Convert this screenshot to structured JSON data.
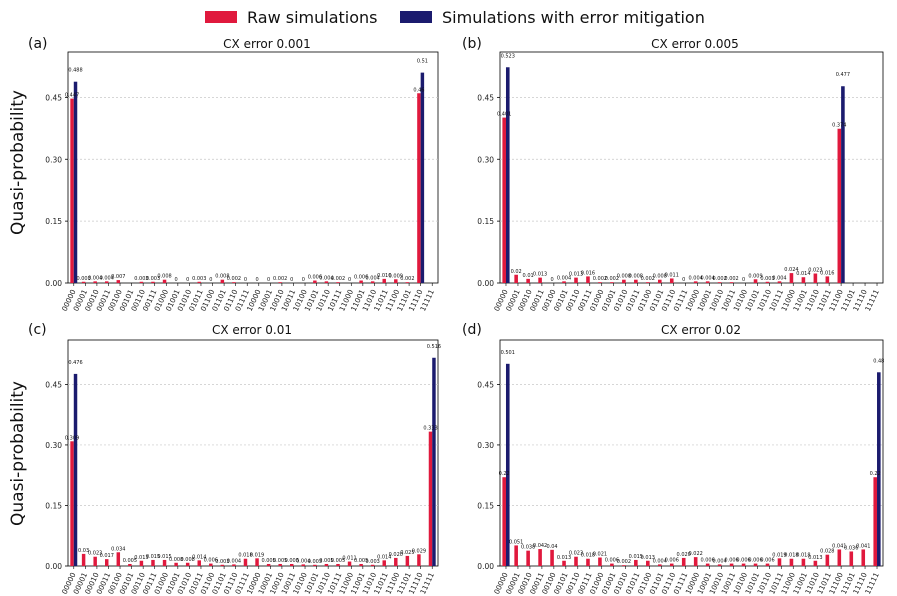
{
  "legend": {
    "raw": {
      "label": "Raw simulations",
      "color": "#e0193d"
    },
    "mit": {
      "label": "Simulations with error mitigation",
      "color": "#1b1b6e"
    }
  },
  "ylabel": "Quasi-probability",
  "chart_data": [
    {
      "type": "bar",
      "panel": "(a)",
      "title": "CX error 0.001",
      "ylabel": "Quasi-probability",
      "categories": [
        "00000",
        "00001",
        "00010",
        "00011",
        "00100",
        "00101",
        "00110",
        "00111",
        "01000",
        "01001",
        "01010",
        "01011",
        "01100",
        "01101",
        "01110",
        "01111",
        "10000",
        "10001",
        "10010",
        "10011",
        "10100",
        "10101",
        "10110",
        "10111",
        "11000",
        "11001",
        "11010",
        "11011",
        "11100",
        "11101",
        "11110",
        "11111"
      ],
      "yticks": [
        "0.00",
        "0.15",
        "0.30",
        "0.45"
      ],
      "ylim": [
        0,
        0.56
      ],
      "grid": true,
      "series": [
        {
          "name": "Raw simulations",
          "values": [
            0.447,
            0.003,
            0.004,
            0.004,
            0.007,
            0.0,
            0.003,
            0.003,
            0.008,
            0.0,
            0.0,
            0.003,
            0.0,
            0.008,
            0.002,
            0.0,
            0.0,
            0.0,
            0.002,
            0.0,
            0.0,
            0.006,
            0.004,
            0.002,
            0.0,
            0.006,
            0.004,
            0.01,
            0.009,
            0.002,
            0.46,
            0.0
          ],
          "labels": [
            "0.447",
            "0.003",
            "0.004",
            "0.004",
            "0.007",
            "",
            "0.003",
            "0.003",
            "0.008",
            "0",
            "0",
            "0.003",
            "0",
            "0.008",
            "0.002",
            "0",
            "0",
            "0",
            "0.002",
            "0",
            "0",
            "0.006",
            "0.004",
            "0.002",
            "0",
            "0.006",
            "0.004",
            "0.010",
            "0.009",
            "0.002",
            "0.46",
            ""
          ]
        },
        {
          "name": "Simulations with error mitigation",
          "values": [
            0.488,
            0,
            0,
            0,
            0,
            0,
            0,
            0,
            0,
            0,
            0,
            0,
            0,
            0,
            0,
            0,
            0,
            0,
            0,
            0,
            0,
            0,
            0,
            0,
            0,
            0,
            0,
            0,
            0,
            0,
            0.51,
            0
          ],
          "labels": [
            "0.488",
            "",
            "",
            "",
            "",
            "",
            "",
            "",
            "",
            "",
            "",
            "",
            "",
            "",
            "",
            "",
            "",
            "",
            "",
            "",
            "",
            "",
            "",
            "",
            "",
            "",
            "",
            "",
            "",
            "",
            "0.51",
            ""
          ]
        }
      ]
    },
    {
      "type": "bar",
      "panel": "(b)",
      "title": "CX error 0.005",
      "categories": [
        "00000",
        "00001",
        "00010",
        "00011",
        "00100",
        "00101",
        "00110",
        "00111",
        "01000",
        "01001",
        "01010",
        "01011",
        "01100",
        "01101",
        "01110",
        "01111",
        "10000",
        "10001",
        "10010",
        "10011",
        "10100",
        "10101",
        "10110",
        "10111",
        "11000",
        "11001",
        "11010",
        "11011",
        "11100",
        "11101",
        "11110",
        "11111"
      ],
      "yticks": [
        "0.00",
        "0.15",
        "0.30",
        "0.45"
      ],
      "ylim": [
        0,
        0.56
      ],
      "grid": true,
      "series": [
        {
          "name": "Raw simulations",
          "values": [
            0.401,
            0.02,
            0.01,
            0.013,
            0.0,
            0.004,
            0.013,
            0.016,
            0.002,
            0.002,
            0.008,
            0.008,
            0.002,
            0.008,
            0.011,
            0.0,
            0.004,
            0.004,
            0.002,
            0.002,
            0.0,
            0.009,
            0.003,
            0.004,
            0.024,
            0.014,
            0.023,
            0.016,
            0.374,
            0.0,
            0.0,
            0.0
          ],
          "labels": [
            "0.401",
            "0.02",
            "0.01",
            "0.013",
            "0",
            "0.004",
            "0.013",
            "0.016",
            "0.002",
            "0.002",
            "0.008",
            "0.008",
            "0.002",
            "0.008",
            "0.011",
            "0",
            "0.004",
            "0.004",
            "0.002",
            "0.002",
            "0",
            "0.009",
            "0.003",
            "0.004",
            "0.024",
            "0.014",
            "0.023",
            "0.016",
            "0.374",
            "",
            "",
            ""
          ]
        },
        {
          "name": "Simulations with error mitigation",
          "values": [
            0.523,
            0,
            0,
            0,
            0,
            0,
            0,
            0,
            0,
            0,
            0,
            0,
            0,
            0,
            0,
            0,
            0,
            0,
            0,
            0,
            0,
            0,
            0,
            0,
            0,
            0,
            0,
            0,
            0.477,
            0,
            0,
            0
          ],
          "labels": [
            "0.523",
            "",
            "",
            "",
            "",
            "",
            "",
            "",
            "",
            "",
            "",
            "",
            "",
            "",
            "",
            "",
            "",
            "",
            "",
            "",
            "",
            "",
            "",
            "",
            "",
            "",
            "",
            "",
            "0.477",
            "",
            "",
            ""
          ]
        }
      ]
    },
    {
      "type": "bar",
      "panel": "(c)",
      "title": "CX error 0.01",
      "ylabel": "Quasi-probability",
      "categories": [
        "00000",
        "00001",
        "00010",
        "00011",
        "00100",
        "00101",
        "00110",
        "00111",
        "01000",
        "01001",
        "01010",
        "01011",
        "01100",
        "01101",
        "01110",
        "01111",
        "10000",
        "10001",
        "10010",
        "10011",
        "10100",
        "10101",
        "10110",
        "10111",
        "11000",
        "11001",
        "11010",
        "11011",
        "11100",
        "11101",
        "11110",
        "11111"
      ],
      "yticks": [
        "0.00",
        "0.15",
        "0.30",
        "0.45"
      ],
      "ylim": [
        0,
        0.56
      ],
      "grid": true,
      "series": [
        {
          "name": "Raw simulations",
          "values": [
            0.309,
            0.03,
            0.023,
            0.017,
            0.034,
            0.005,
            0.013,
            0.015,
            0.015,
            0.008,
            0.008,
            0.014,
            0.006,
            0.003,
            0.004,
            0.018,
            0.019,
            0.005,
            0.005,
            0.005,
            0.004,
            0.003,
            0.005,
            0.005,
            0.011,
            0.005,
            0.003,
            0.014,
            0.02,
            0.025,
            0.029,
            0.333
          ],
          "labels": [
            "0.309",
            "0.03",
            "0.023",
            "0.017",
            "0.034",
            "0.005",
            "0.013",
            "0.015",
            "0.015",
            "0.008",
            "0.008",
            "0.014",
            "0.006",
            "0.003",
            "0.004",
            "0.018",
            "0.019",
            "0.005",
            "0.005",
            "0.005",
            "0.004",
            "0.003",
            "0.005",
            "0.005",
            "0.011",
            "0.005",
            "0.003",
            "0.014",
            "0.020",
            "0.025",
            "0.029",
            "0.333"
          ]
        },
        {
          "name": "Simulations with error mitigation",
          "values": [
            0.476,
            0,
            0,
            0,
            0,
            0,
            0,
            0,
            0,
            0,
            0,
            0,
            0,
            0,
            0,
            0,
            0,
            0,
            0,
            0,
            0,
            0,
            0,
            0,
            0,
            0,
            0,
            0,
            0,
            0,
            0,
            0.516
          ],
          "labels": [
            "0.476",
            "",
            "",
            "",
            "",
            "",
            "",
            "",
            "",
            "",
            "",
            "",
            "",
            "",
            "",
            "",
            "",
            "",
            "",
            "",
            "",
            "",
            "",
            "",
            "",
            "",
            "",
            "",
            "",
            "",
            "",
            "0.516"
          ]
        }
      ]
    },
    {
      "type": "bar",
      "panel": "(d)",
      "title": "CX error 0.02",
      "categories": [
        "00000",
        "00001",
        "00010",
        "00011",
        "00100",
        "00101",
        "00110",
        "00111",
        "01000",
        "01001",
        "01010",
        "01011",
        "01100",
        "01101",
        "01110",
        "01111",
        "10000",
        "10001",
        "10010",
        "10011",
        "10100",
        "10101",
        "10110",
        "10111",
        "11000",
        "11001",
        "11010",
        "11011",
        "11100",
        "11101",
        "11110",
        "11111"
      ],
      "yticks": [
        "0.00",
        "0.15",
        "0.30",
        "0.45"
      ],
      "ylim": [
        0,
        0.56
      ],
      "grid": true,
      "series": [
        {
          "name": "Raw simulations",
          "values": [
            0.22,
            0.051,
            0.038,
            0.042,
            0.04,
            0.013,
            0.023,
            0.018,
            0.021,
            0.006,
            0.002,
            0.015,
            0.013,
            0.004,
            0.006,
            0.02,
            0.022,
            0.006,
            0.004,
            0.006,
            0.006,
            0.006,
            0.006,
            0.019,
            0.018,
            0.018,
            0.013,
            0.028,
            0.041,
            0.036,
            0.041,
            0.22
          ],
          "labels": [
            "0.22",
            "0.051",
            "0.038",
            "0.042",
            "0.04",
            "0.013",
            "0.023",
            "0.018",
            "0.021",
            "0.006",
            "0.002",
            "0.015",
            "0.013",
            "0.004",
            "0.006",
            "0.020",
            "0.022",
            "0.006",
            "0.004",
            "0.006",
            "0.006",
            "0.006",
            "0.006",
            "0.019",
            "0.018",
            "0.018",
            "0.013",
            "0.028",
            "0.041",
            "0.036",
            "0.041",
            "0.22"
          ]
        },
        {
          "name": "Simulations with error mitigation",
          "values": [
            0.501,
            0,
            0,
            0,
            0,
            0,
            0,
            0,
            0,
            0,
            0,
            0,
            0,
            0,
            0,
            0,
            0,
            0,
            0,
            0,
            0,
            0,
            0,
            0,
            0,
            0,
            0,
            0,
            0,
            0,
            0,
            0.48
          ],
          "labels": [
            "0.501",
            "",
            "",
            "",
            "",
            "",
            "",
            "",
            "",
            "",
            "",
            "",
            "",
            "",
            "",
            "",
            "",
            "",
            "",
            "",
            "",
            "",
            "",
            "",
            "",
            "",
            "",
            "",
            "",
            "",
            "",
            "0.48"
          ]
        }
      ]
    }
  ]
}
